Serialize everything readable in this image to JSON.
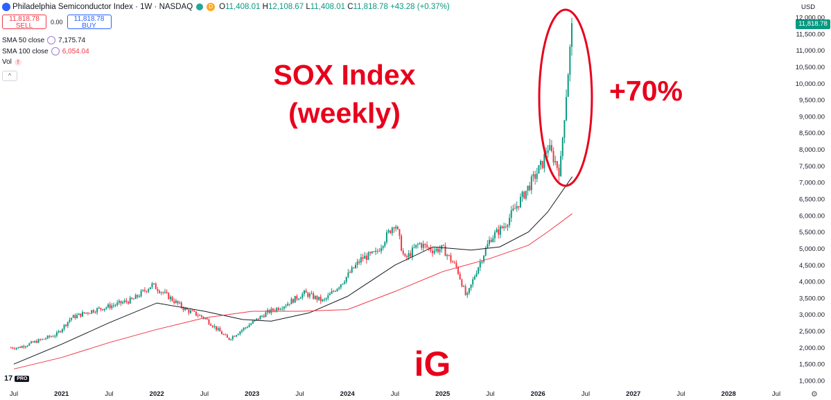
{
  "header": {
    "title": "Philadelphia Semiconductor Index · 1W · NASDAQ",
    "status": "D",
    "ohlc": {
      "o_label": "O",
      "o": "11,408.01",
      "h_label": "H",
      "h": "12,108.67",
      "l_label": "L",
      "l": "11,408.01",
      "c_label": "C",
      "c": "11,818.78",
      "change": "+43.28 (+0.37%)"
    }
  },
  "trade": {
    "sell_price": "11,818.78",
    "sell_label": "SELL",
    "spread": "0.00",
    "buy_price": "11,818.78",
    "buy_label": "BUY"
  },
  "indicators": [
    {
      "label": "SMA 50 close",
      "value": "7,175.74",
      "color": "#131722"
    },
    {
      "label": "SMA 100 close",
      "value": "6,054.04",
      "color": "#f23645"
    },
    {
      "label": "Vol",
      "value": ""
    }
  ],
  "collapse_label": "^",
  "currency": "USD",
  "last_price": "11,818.78",
  "annotations": {
    "headline_1": "SOX Index",
    "headline_2": "(weekly)",
    "gain": "+70%",
    "brand": "iG"
  },
  "tv_logo": {
    "mark": "17",
    "tier": "PRO"
  },
  "colors": {
    "up": "#089981",
    "down": "#f23645",
    "sma50": "#131722",
    "sma100": "#f23645",
    "annotation": "#e8001c"
  },
  "chart_data": {
    "type": "candlestick",
    "interval": "1W",
    "y_axis_ticks": [
      "12,000.00",
      "11,500.00",
      "11,000.00",
      "10,500.00",
      "10,000.00",
      "9,500.00",
      "9,000.00",
      "8,500.00",
      "8,000.00",
      "7,500.00",
      "7,000.00",
      "6,500.00",
      "6,000.00",
      "5,500.00",
      "5,000.00",
      "4,500.00",
      "4,000.00",
      "3,500.00",
      "3,000.00",
      "2,500.00",
      "2,000.00",
      "1,500.00",
      "1,000.00"
    ],
    "x_axis_ticks": [
      "Jul",
      "2021",
      "Jul",
      "2022",
      "Jul",
      "2023",
      "Jul",
      "2024",
      "Jul",
      "2025",
      "Jul",
      "2026",
      "Jul",
      "2027",
      "Jul",
      "2028",
      "Jul"
    ],
    "ylim": [
      1000,
      12000
    ],
    "price_path": [
      {
        "t": 2020.55,
        "v": 2000
      },
      {
        "t": 2020.75,
        "v": 2200
      },
      {
        "t": 2020.95,
        "v": 2400
      },
      {
        "t": 2021.1,
        "v": 2900
      },
      {
        "t": 2021.3,
        "v": 3100
      },
      {
        "t": 2021.5,
        "v": 3250
      },
      {
        "t": 2021.75,
        "v": 3450
      },
      {
        "t": 2021.95,
        "v": 3900
      },
      {
        "t": 2022.05,
        "v": 3700
      },
      {
        "t": 2022.3,
        "v": 3150
      },
      {
        "t": 2022.5,
        "v": 2900
      },
      {
        "t": 2022.75,
        "v": 2250
      },
      {
        "t": 2022.95,
        "v": 2650
      },
      {
        "t": 2023.15,
        "v": 3050
      },
      {
        "t": 2023.35,
        "v": 3300
      },
      {
        "t": 2023.55,
        "v": 3650
      },
      {
        "t": 2023.75,
        "v": 3400
      },
      {
        "t": 2023.95,
        "v": 4000
      },
      {
        "t": 2024.15,
        "v": 4700
      },
      {
        "t": 2024.3,
        "v": 4850
      },
      {
        "t": 2024.5,
        "v": 5800
      },
      {
        "t": 2024.6,
        "v": 4650
      },
      {
        "t": 2024.75,
        "v": 5150
      },
      {
        "t": 2024.9,
        "v": 4950
      },
      {
        "t": 2025.0,
        "v": 5000
      },
      {
        "t": 2025.15,
        "v": 4400
      },
      {
        "t": 2025.25,
        "v": 3500
      },
      {
        "t": 2025.35,
        "v": 4300
      },
      {
        "t": 2025.5,
        "v": 5300
      },
      {
        "t": 2025.65,
        "v": 5700
      },
      {
        "t": 2025.8,
        "v": 6400
      },
      {
        "t": 2025.95,
        "v": 7100
      },
      {
        "t": 2026.05,
        "v": 7600
      },
      {
        "t": 2026.1,
        "v": 8100
      },
      {
        "t": 2026.17,
        "v": 7700
      },
      {
        "t": 2026.23,
        "v": 7300
      },
      {
        "t": 2026.27,
        "v": 8800
      },
      {
        "t": 2026.32,
        "v": 10500
      },
      {
        "t": 2026.36,
        "v": 11818.78
      }
    ],
    "series": [
      {
        "name": "SMA 50 close",
        "last": 7175.74,
        "points": [
          [
            2020.5,
            1500
          ],
          [
            2021.0,
            2100
          ],
          [
            2021.5,
            2750
          ],
          [
            2022.0,
            3350
          ],
          [
            2022.5,
            3100
          ],
          [
            2022.9,
            2850
          ],
          [
            2023.2,
            2800
          ],
          [
            2023.6,
            3050
          ],
          [
            2024.0,
            3550
          ],
          [
            2024.5,
            4500
          ],
          [
            2024.9,
            5050
          ],
          [
            2025.3,
            4950
          ],
          [
            2025.6,
            5050
          ],
          [
            2025.9,
            5500
          ],
          [
            2026.1,
            6100
          ],
          [
            2026.36,
            7175.74
          ]
        ]
      },
      {
        "name": "SMA 100 close",
        "last": 6054.04,
        "points": [
          [
            2020.5,
            1350
          ],
          [
            2021.0,
            1700
          ],
          [
            2021.5,
            2150
          ],
          [
            2022.0,
            2550
          ],
          [
            2022.5,
            2900
          ],
          [
            2023.0,
            3100
          ],
          [
            2023.5,
            3100
          ],
          [
            2024.0,
            3150
          ],
          [
            2024.5,
            3700
          ],
          [
            2025.0,
            4300
          ],
          [
            2025.5,
            4700
          ],
          [
            2025.9,
            5100
          ],
          [
            2026.1,
            5500
          ],
          [
            2026.36,
            6054.04
          ]
        ]
      }
    ]
  }
}
